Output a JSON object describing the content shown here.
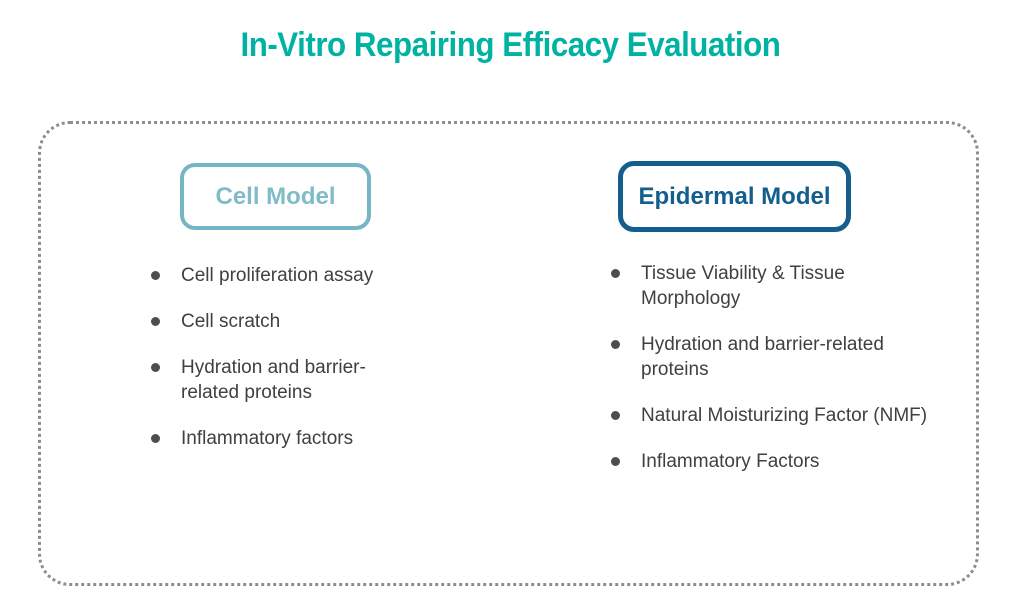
{
  "title": "In-Vitro Repairing Efficacy Evaluation",
  "colors": {
    "title_teal": "#00b2a2",
    "cell_model_teal": "#74b6c3",
    "epidermal_model_blue": "#135e8d",
    "body_text_gray": "#404040",
    "dotted_border_gray": "#8d8d8d"
  },
  "columns": [
    {
      "header": "Cell Model",
      "items": [
        "Cell proliferation assay",
        "Cell scratch",
        "Hydration and barrier-related proteins",
        "Inflammatory factors"
      ]
    },
    {
      "header": "Epidermal Model",
      "items": [
        "Tissue Viability & Tissue Morphology",
        "Hydration and barrier-related proteins",
        "Natural Moisturizing Factor (NMF)",
        "Inflammatory Factors"
      ]
    }
  ]
}
